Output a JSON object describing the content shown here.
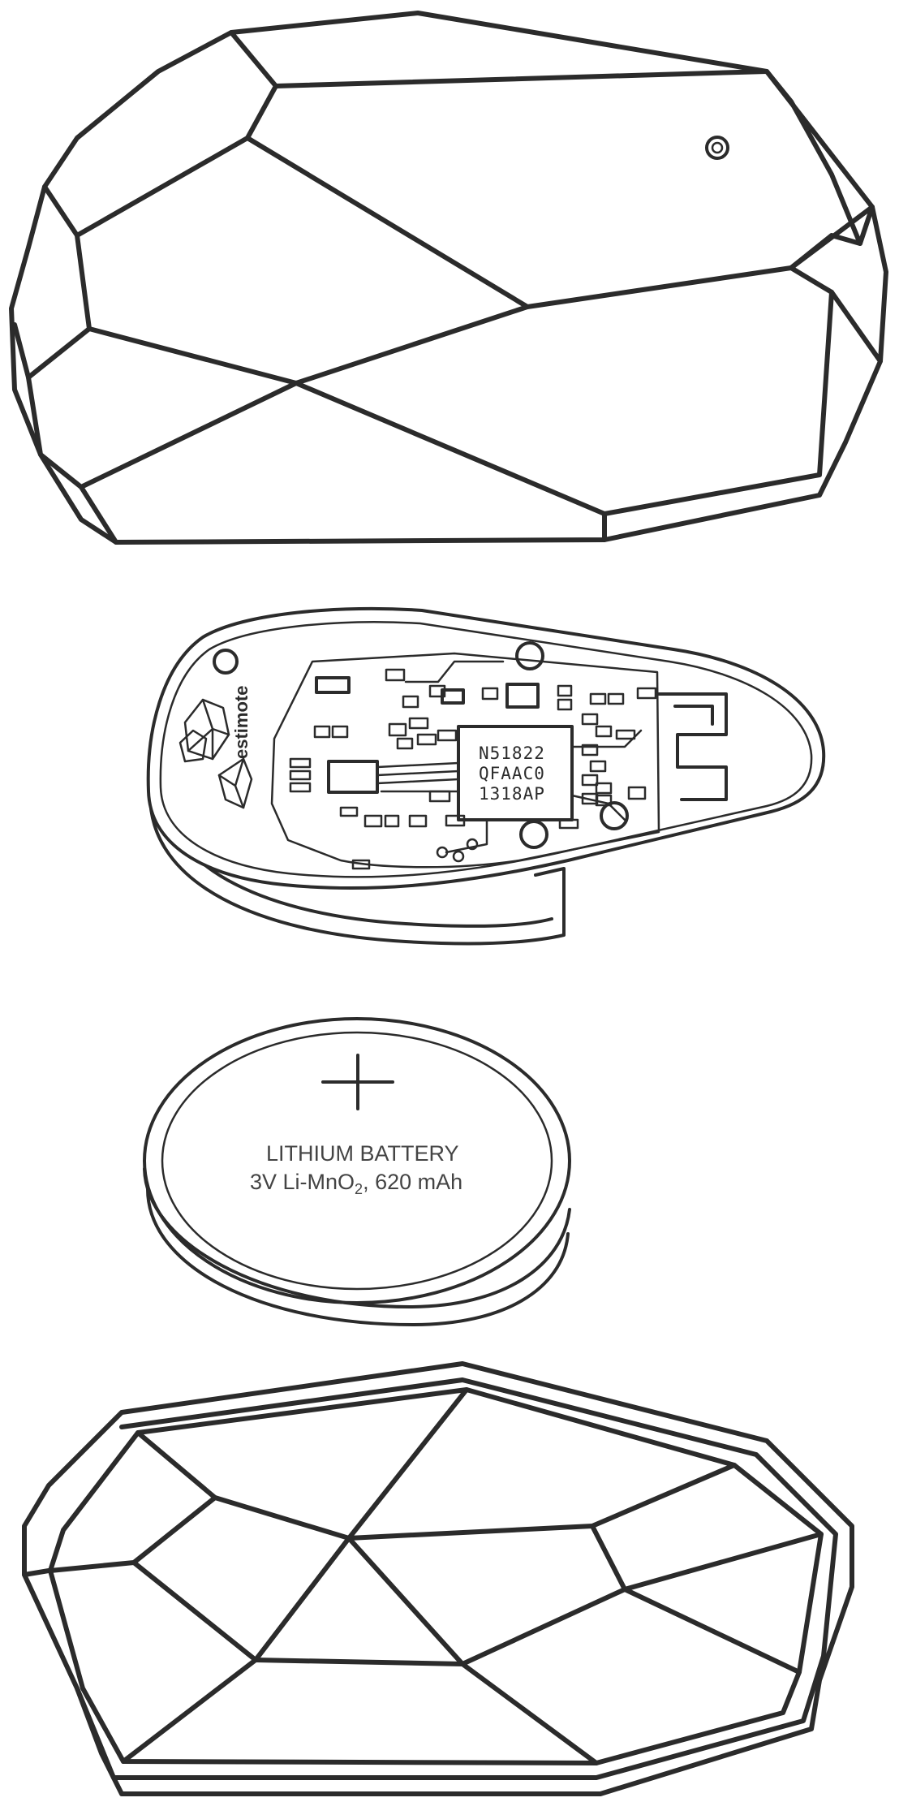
{
  "pcb": {
    "brand": "estimote",
    "chip_lines": [
      "N51822",
      "QFAAC0",
      "1318AP"
    ]
  },
  "battery": {
    "symbol": "+",
    "line1": "LITHIUM BATTERY",
    "line2": "3V Li-MnO",
    "line2_sub": "2",
    "line2_suffix": ", 620 mAh"
  },
  "colors": {
    "stroke": "#2b2b2b",
    "background": "#ffffff"
  }
}
